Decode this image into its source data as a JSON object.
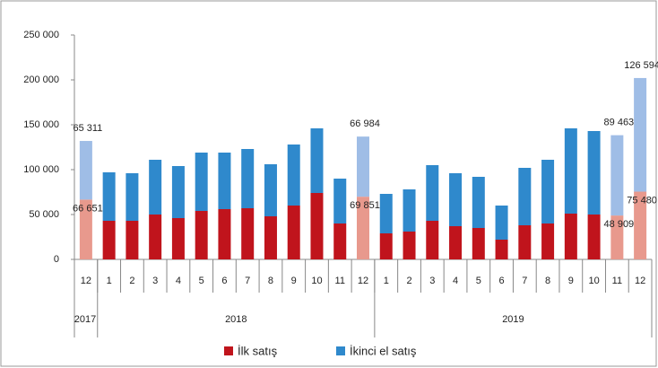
{
  "chart_data": {
    "type": "stacked_bar",
    "categories": [
      "12",
      "1",
      "2",
      "3",
      "4",
      "5",
      "6",
      "7",
      "8",
      "9",
      "10",
      "11",
      "12",
      "1",
      "2",
      "3",
      "4",
      "5",
      "6",
      "7",
      "8",
      "9",
      "10",
      "11",
      "12"
    ],
    "groups": [
      {
        "label": "2017",
        "count": 1
      },
      {
        "label": "2018",
        "count": 12
      },
      {
        "label": "2019",
        "count": 12
      }
    ],
    "series": [
      {
        "name": "İlk satış",
        "color": "#c0141c",
        "colors": [
          "#e8998d",
          "#c0141c",
          "#c0141c",
          "#c0141c",
          "#c0141c",
          "#c0141c",
          "#c0141c",
          "#c0141c",
          "#c0141c",
          "#c0141c",
          "#c0141c",
          "#c0141c",
          "#e8998d",
          "#c0141c",
          "#c0141c",
          "#c0141c",
          "#c0141c",
          "#c0141c",
          "#c0141c",
          "#c0141c",
          "#c0141c",
          "#c0141c",
          "#c0141c",
          "#e8998d",
          "#e8998d"
        ],
        "values": [
          66651,
          43000,
          43000,
          50000,
          46000,
          54000,
          56000,
          57000,
          48000,
          60000,
          74000,
          40000,
          69851,
          29000,
          31000,
          43000,
          37000,
          35000,
          22000,
          38000,
          40000,
          51000,
          50000,
          48909,
          75480
        ],
        "value_labels": [
          "66 651",
          null,
          null,
          null,
          null,
          null,
          null,
          null,
          null,
          null,
          null,
          null,
          "69 851",
          null,
          null,
          null,
          null,
          null,
          null,
          null,
          null,
          null,
          null,
          "48 909",
          "75 480"
        ]
      },
      {
        "name": "İkinci el satış",
        "color": "#2f89cc",
        "colors": [
          "#9fbde6",
          "#2f89cc",
          "#2f89cc",
          "#2f89cc",
          "#2f89cc",
          "#2f89cc",
          "#2f89cc",
          "#2f89cc",
          "#2f89cc",
          "#2f89cc",
          "#2f89cc",
          "#2f89cc",
          "#9fbde6",
          "#2f89cc",
          "#2f89cc",
          "#2f89cc",
          "#2f89cc",
          "#2f89cc",
          "#2f89cc",
          "#2f89cc",
          "#2f89cc",
          "#2f89cc",
          "#2f89cc",
          "#9fbde6",
          "#9fbde6"
        ],
        "values": [
          65311,
          54000,
          53000,
          61000,
          58000,
          65000,
          63000,
          66000,
          58000,
          68000,
          72000,
          50000,
          66984,
          44000,
          47000,
          62000,
          59000,
          57000,
          38000,
          64000,
          71000,
          95000,
          93000,
          89463,
          126594
        ],
        "value_labels": [
          "65 311",
          null,
          null,
          null,
          null,
          null,
          null,
          null,
          null,
          null,
          null,
          null,
          "66 984",
          null,
          null,
          null,
          null,
          null,
          null,
          null,
          null,
          null,
          null,
          "89 463",
          "126 594"
        ]
      }
    ],
    "ylim": [
      0,
      250000
    ],
    "yticks": [
      {
        "value": 0,
        "label": "0"
      },
      {
        "value": 50000,
        "label": "50 000"
      },
      {
        "value": 100000,
        "label": "100 000"
      },
      {
        "value": 150000,
        "label": "150 000"
      },
      {
        "value": 200000,
        "label": "200 000"
      },
      {
        "value": 250000,
        "label": "250 000"
      }
    ],
    "grid": false,
    "legend": "bottom"
  }
}
